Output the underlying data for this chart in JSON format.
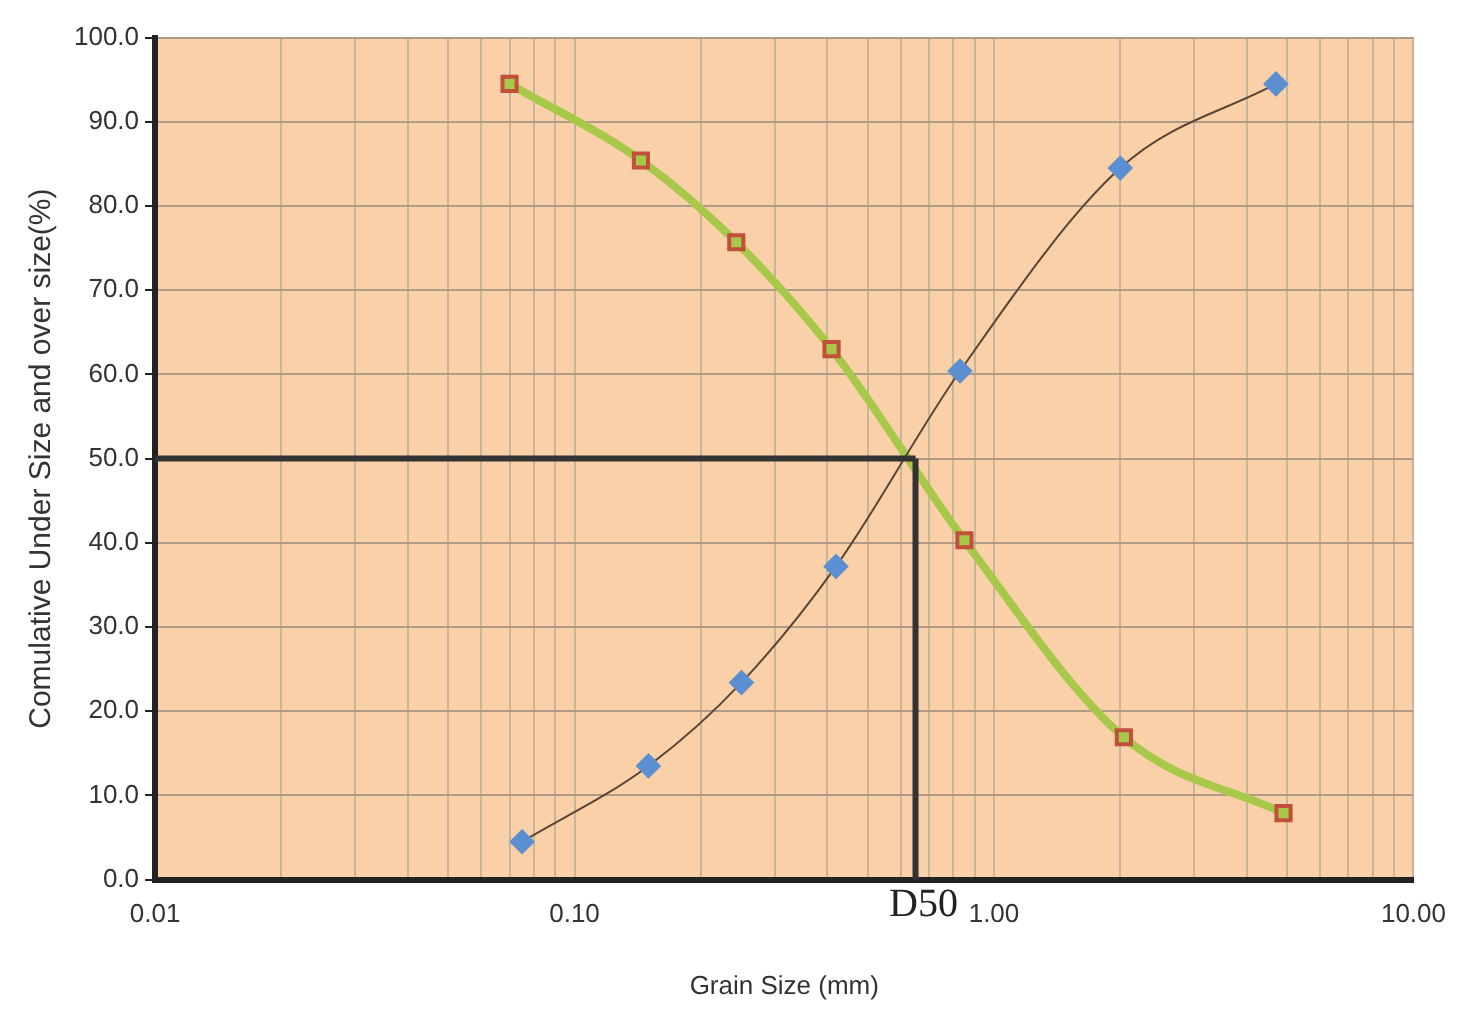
{
  "chart_data": {
    "type": "line",
    "xlabel": "Grain Size (mm)",
    "ylabel": "Comulative Under Size and over size(%)",
    "log": "x",
    "grid": true,
    "legend": false,
    "line_style": "solid",
    "xlim": [
      0.01,
      10
    ],
    "ylim": [
      0,
      100
    ],
    "xticks": [
      {
        "value": 0.01,
        "label": "0.01"
      },
      {
        "value": 0.02,
        "label": null
      },
      {
        "value": 0.03,
        "label": null
      },
      {
        "value": 0.04,
        "label": null
      },
      {
        "value": 0.05,
        "label": null
      },
      {
        "value": 0.06,
        "label": null
      },
      {
        "value": 0.07,
        "label": null
      },
      {
        "value": 0.08,
        "label": null
      },
      {
        "value": 0.09,
        "label": null
      },
      {
        "value": 0.1,
        "label": "0.10"
      },
      {
        "value": 0.2,
        "label": null
      },
      {
        "value": 0.3,
        "label": null
      },
      {
        "value": 0.4,
        "label": null
      },
      {
        "value": 0.5,
        "label": null
      },
      {
        "value": 0.6,
        "label": null
      },
      {
        "value": 0.7,
        "label": null
      },
      {
        "value": 0.8,
        "label": null
      },
      {
        "value": 0.9,
        "label": null
      },
      {
        "value": 1,
        "label": "1.00"
      },
      {
        "value": 2,
        "label": null
      },
      {
        "value": 3,
        "label": null
      },
      {
        "value": 4,
        "label": null
      },
      {
        "value": 5,
        "label": null
      },
      {
        "value": 6,
        "label": null
      },
      {
        "value": 7,
        "label": null
      },
      {
        "value": 8,
        "label": null
      },
      {
        "value": 9,
        "label": null
      },
      {
        "value": 10,
        "label": "10.00"
      }
    ],
    "yticks": [
      {
        "value": 0,
        "label": "0.0"
      },
      {
        "value": 10,
        "label": "10.0"
      },
      {
        "value": 20,
        "label": "20.0"
      },
      {
        "value": 30,
        "label": "30.0"
      },
      {
        "value": 40,
        "label": "40.0"
      },
      {
        "value": 50,
        "label": "50.0"
      },
      {
        "value": 60,
        "label": "60.0"
      },
      {
        "value": 70,
        "label": "70.0"
      },
      {
        "value": 80,
        "label": "80.0"
      },
      {
        "value": 90,
        "label": "90.0"
      },
      {
        "value": 100,
        "label": "100.0"
      }
    ],
    "series": [
      {
        "color": "#5b8fd0",
        "marker": "diamond",
        "x": [
          0.075,
          0.15,
          0.25,
          0.42,
          0.83,
          2.0,
          4.7
        ],
        "values": [
          4.5,
          13.5,
          23.4,
          37.2,
          60.4,
          84.5,
          94.5
        ]
      },
      {
        "color": "#a8c84a",
        "marker": "square",
        "x": [
          0.07,
          0.144,
          0.243,
          0.41,
          0.85,
          2.04,
          4.9
        ],
        "values": [
          94.5,
          85.4,
          75.7,
          63,
          40.3,
          16.9,
          7.9
        ]
      }
    ],
    "ref_lines": [
      {
        "axis": "y",
        "value": 50,
        "color": "#333333"
      },
      {
        "axis": "x",
        "value": 0.65,
        "label": "D50",
        "color": "#333333"
      }
    ]
  }
}
